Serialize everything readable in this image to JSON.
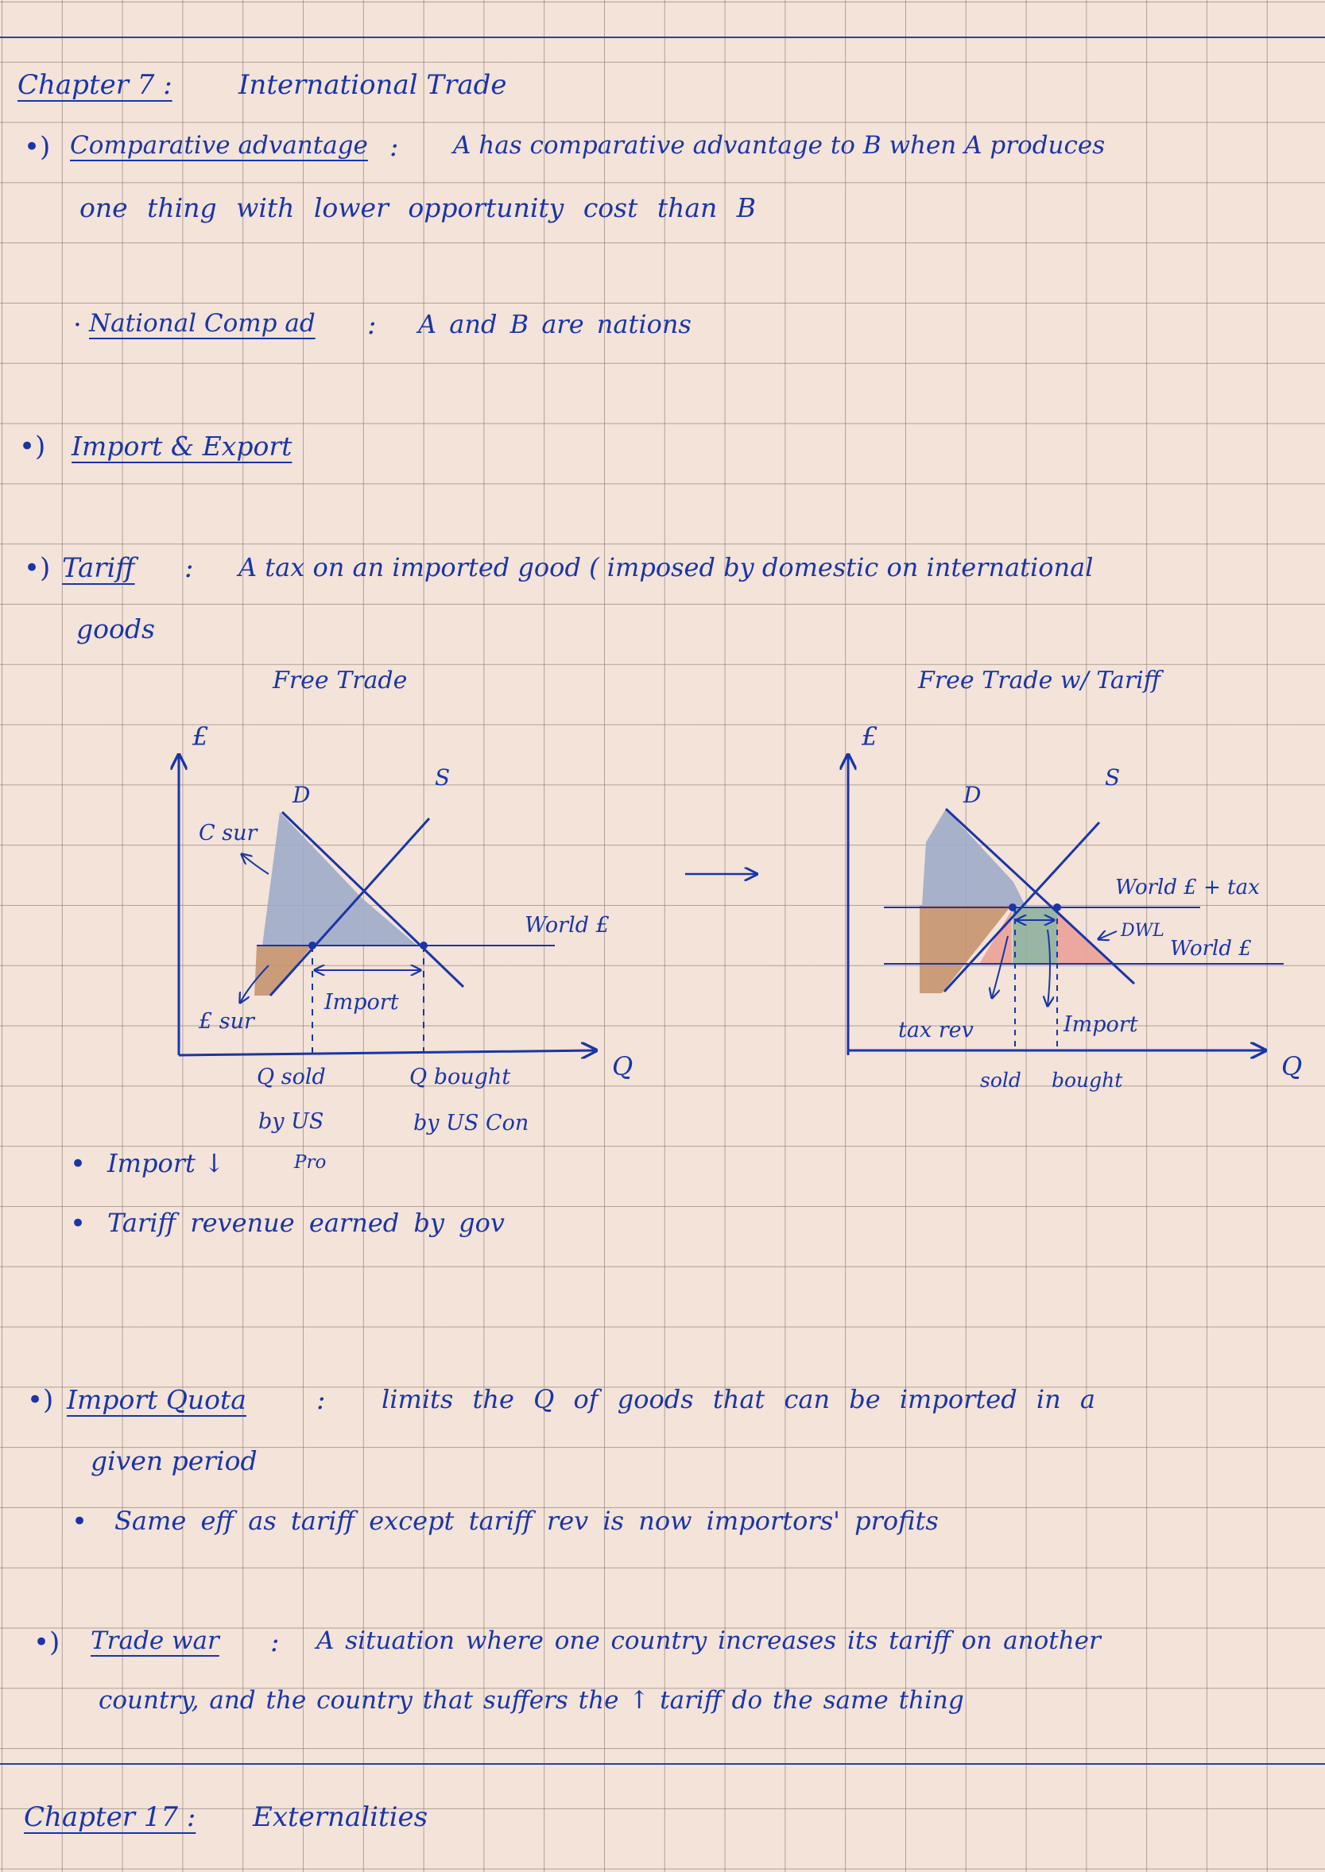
{
  "chapter7": {
    "heading": "Chapter 7 :",
    "title": "International Trade"
  },
  "comp_adv": {
    "marker": "•)",
    "term": "Comparative advantage",
    "colon": ":",
    "line1": "A has comparative advantage to B when A produces",
    "line2": "one thing with lower opportunity cost than B",
    "sub_bullet": "·",
    "sub_term": "National Comp ad",
    "sub_colon": ":",
    "sub_def": "A and B are nations"
  },
  "import_export": {
    "marker": "•)",
    "term": "Import & Export"
  },
  "tariff": {
    "marker": "•)",
    "term": "Tariff",
    "colon": ":",
    "line1": "A tax on an imported good ( imposed by domestic on international",
    "line2": "goods",
    "graph_left": {
      "title": "Free Trade",
      "p_axis": "£",
      "q_axis": "Q",
      "demand": "D",
      "supply": "S",
      "world_price": "World £",
      "consumer_surplus": "C sur",
      "producer_surplus": "£ sur",
      "import": "Import",
      "q_sold_1": "Q sold",
      "q_sold_2": "by US",
      "q_sold_3": "Pro",
      "q_bought_1": "Q bought",
      "q_bought_2": "by US Con"
    },
    "arrow": "→",
    "graph_right": {
      "title": "Free Trade w/ Tariff",
      "p_axis": "£",
      "q_axis": "Q",
      "demand": "D",
      "supply": "S",
      "world_price_tax": "World £ + tax",
      "world_price": "World £",
      "dwl": "DWL",
      "tax_rev": "tax rev",
      "import": "Import",
      "sold": "sold",
      "bought": "bought"
    },
    "bullets": [
      "Import ↓",
      "Tariff revenue earned by gov"
    ]
  },
  "quota": {
    "marker": "•)",
    "term": "Import Quota",
    "colon": ":",
    "line1": "limits the Q of goods that can be imported in a",
    "line2": "given period",
    "bullet": "Same eff as tariff except tariff rev is now importors' profits"
  },
  "trade_war": {
    "marker": "•)",
    "term": "Trade war",
    "colon": ":",
    "line1": "A situation where one country increases its tariff on another",
    "line2": "country, and the country that suffers the ↑ tariff do the same thing"
  },
  "chapter17": {
    "heading": "Chapter 17 :",
    "title": "Externalities"
  },
  "colors": {
    "ink": "#1a35a8",
    "paper": "#f3e3d8",
    "consumer_surplus_fill": "#9eabc9",
    "producer_surplus_fill": "#c79470",
    "tax_revenue_fill": "#8fb09e",
    "dwl_fill": "#eba198"
  }
}
